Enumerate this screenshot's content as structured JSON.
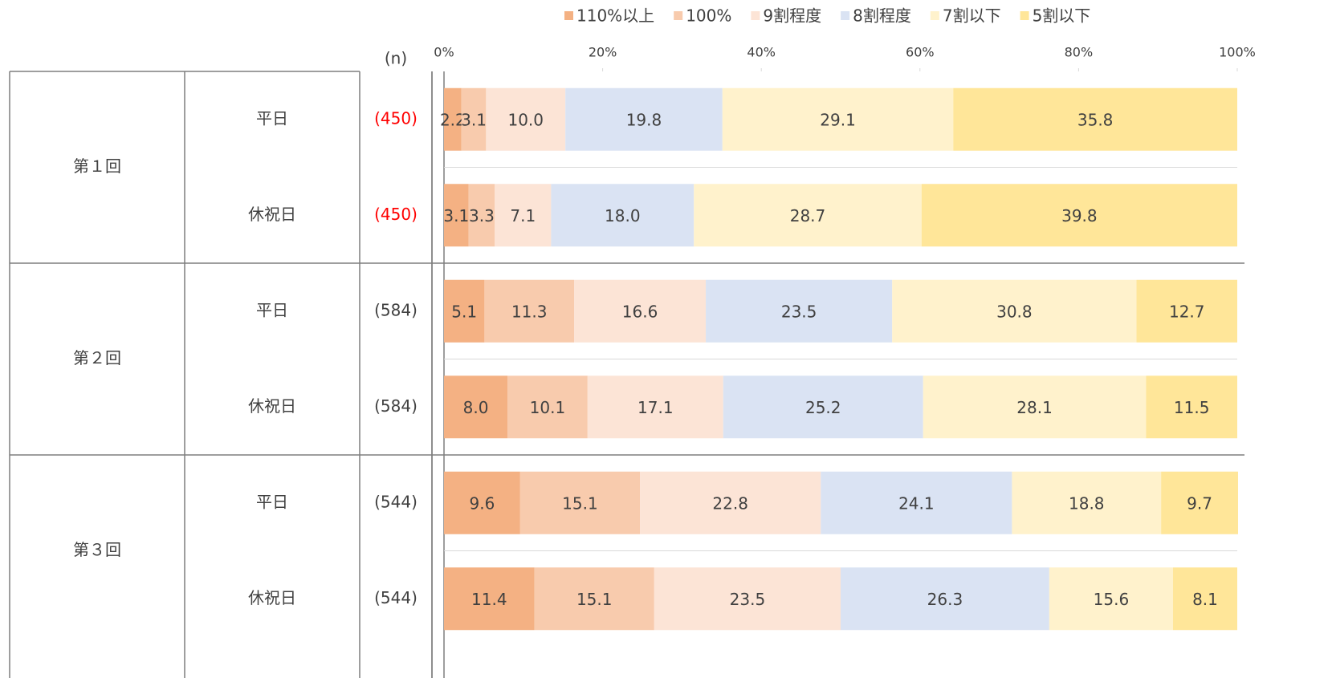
{
  "chart_data": {
    "type": "bar",
    "orientation": "horizontal",
    "stacked": true,
    "n_header": "(n)",
    "groups": [
      "第１回",
      "第２回",
      "第３回"
    ],
    "categories": [
      "平日",
      "休祝日",
      "平日",
      "休祝日",
      "平日",
      "休祝日"
    ],
    "n_labels": [
      "(450)",
      "(450)",
      "(584)",
      "(584)",
      "(544)",
      "(544)"
    ],
    "n_colors": [
      "#ff0000",
      "#ff0000",
      "#404040",
      "#404040",
      "#404040",
      "#404040"
    ],
    "series": [
      {
        "name": "110%以上",
        "color": "#f4b183",
        "values": [
          2.2,
          3.1,
          5.1,
          8.0,
          9.6,
          11.4
        ],
        "value_labels": [
          "2.2",
          "3.1",
          "5.1",
          "8.0",
          "9.6",
          "11.4"
        ]
      },
      {
        "name": "100%",
        "color": "#f8cbad",
        "values": [
          3.1,
          3.3,
          11.3,
          10.1,
          15.1,
          15.1
        ],
        "value_labels": [
          "3.1",
          "3.3",
          "11.3",
          "10.1",
          "15.1",
          "15.1"
        ]
      },
      {
        "name": "9割程度",
        "color": "#fce4d6",
        "values": [
          10.0,
          7.1,
          16.6,
          17.1,
          22.8,
          23.5
        ],
        "value_labels": [
          "10.0",
          "7.1",
          "16.6",
          "17.1",
          "22.8",
          "23.5"
        ]
      },
      {
        "name": "8割程度",
        "color": "#dae3f3",
        "values": [
          19.8,
          18.0,
          23.5,
          25.2,
          24.1,
          26.3
        ],
        "value_labels": [
          "19.8",
          "18.0",
          "23.5",
          "25.2",
          "24.1",
          "26.3"
        ]
      },
      {
        "name": "7割以下",
        "color": "#fff2cc",
        "values": [
          29.1,
          28.7,
          30.8,
          28.1,
          18.8,
          15.6
        ],
        "value_labels": [
          "29.1",
          "28.7",
          "30.8",
          "28.1",
          "18.8",
          "15.6"
        ]
      },
      {
        "name": "5割以下",
        "color": "#ffe699",
        "values": [
          35.8,
          39.8,
          12.7,
          11.5,
          9.7,
          8.1
        ],
        "value_labels": [
          "35.8",
          "39.8",
          "12.7",
          "11.5",
          "9.7",
          "8.1"
        ]
      }
    ],
    "xlim": [
      0,
      100
    ],
    "xticks": [
      {
        "value": 0,
        "label": "0%"
      },
      {
        "value": 20,
        "label": "20%"
      },
      {
        "value": 40,
        "label": "40%"
      },
      {
        "value": 60,
        "label": "60%"
      },
      {
        "value": 80,
        "label": "80%"
      },
      {
        "value": 100,
        "label": "100%"
      }
    ],
    "legend": "top"
  }
}
